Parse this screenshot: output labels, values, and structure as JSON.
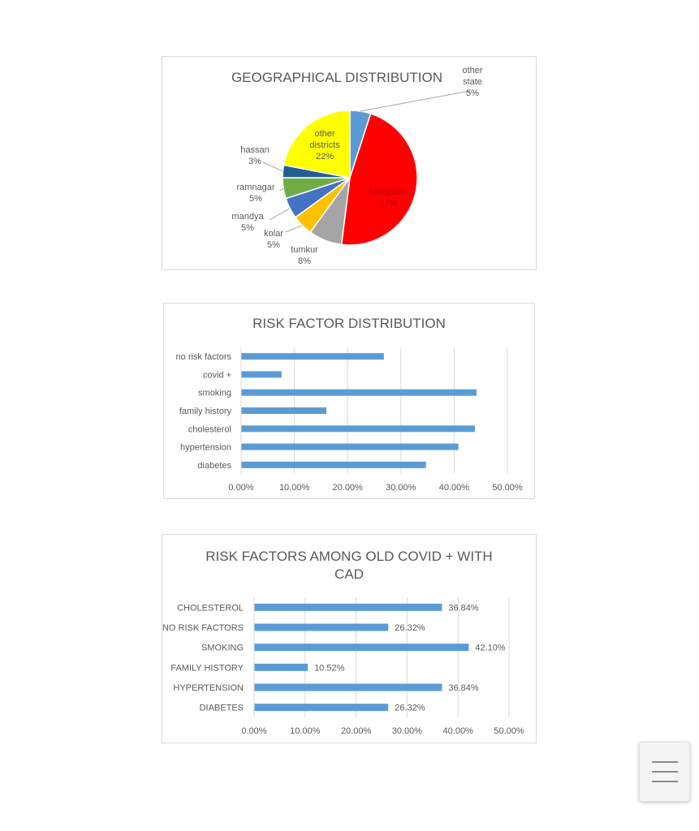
{
  "chart_data": [
    {
      "type": "pie",
      "title": "GEOGRAPHICAL DISTRIBUTION",
      "slices": [
        {
          "label": [
            "other",
            "state"
          ],
          "pct": "5%",
          "value": 5,
          "color": "#5b9bd5"
        },
        {
          "label": [
            "bangalore"
          ],
          "pct": "47%",
          "value": 47,
          "color": "#ff0000"
        },
        {
          "label": [
            "tumkur"
          ],
          "pct": "8%",
          "value": 8,
          "color": "#a5a5a5"
        },
        {
          "label": [
            "kolar"
          ],
          "pct": "5%",
          "value": 5,
          "color": "#ffc000"
        },
        {
          "label": [
            "mandya"
          ],
          "pct": "5%",
          "value": 5,
          "color": "#4472c4"
        },
        {
          "label": [
            "ramnagar"
          ],
          "pct": "5%",
          "value": 5,
          "color": "#70ad47"
        },
        {
          "label": [
            "hassan"
          ],
          "pct": "3%",
          "value": 3,
          "color": "#255e91"
        },
        {
          "label": [
            "other",
            "districts"
          ],
          "pct": "22%",
          "value": 22,
          "color": "#ffff00"
        }
      ]
    },
    {
      "type": "bar",
      "orientation": "horizontal",
      "title": "RISK FACTOR DISTRIBUTION",
      "categories": [
        "no risk factors",
        "covid +",
        "smoking",
        "family history",
        "cholesterol",
        "hypertension",
        "diabetes"
      ],
      "values": [
        26.8,
        7.6,
        44.2,
        16.0,
        43.9,
        40.8,
        34.7
      ],
      "xlim": [
        0,
        50
      ],
      "ticks": [
        "0.00%",
        "10.00%",
        "20.00%",
        "30.00%",
        "40.00%",
        "50.00%"
      ],
      "color": "#5b9bd5",
      "grid": true
    },
    {
      "type": "bar",
      "orientation": "horizontal",
      "title": "RISK FACTORS AMONG OLD COVID + WITH CAD",
      "categories": [
        "CHOLESTEROL",
        "NO RISK FACTORS",
        "SMOKING",
        "FAMILY HISTORY",
        "HYPERTENSION",
        "DIABETES"
      ],
      "values": [
        36.84,
        26.32,
        42.1,
        10.52,
        36.84,
        26.32
      ],
      "data_labels": [
        "36.84%",
        "26.32%",
        "42.10%",
        "10.52%",
        "36.84%",
        "26.32%"
      ],
      "xlim": [
        0,
        50
      ],
      "ticks": [
        "0.00%",
        "10.00%",
        "20.00%",
        "30.00%",
        "40.00%",
        "50.00%"
      ],
      "color": "#5b9bd5",
      "grid": true
    }
  ]
}
